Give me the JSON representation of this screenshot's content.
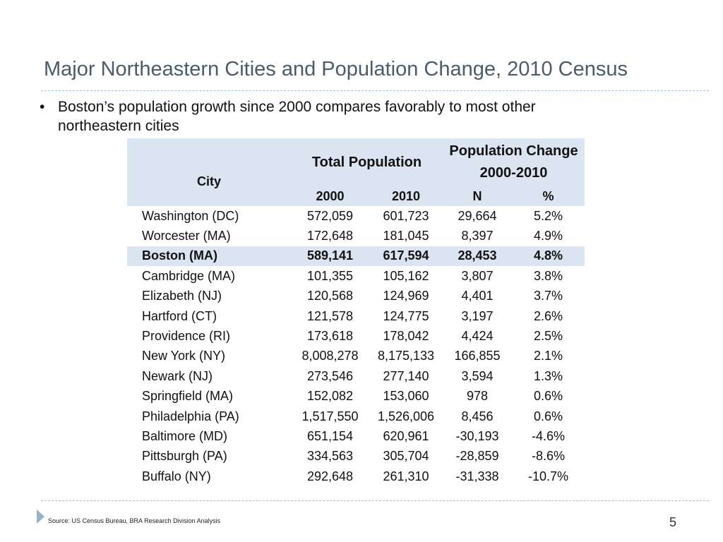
{
  "slide": {
    "title": "Major Northeastern Cities and Population Change, 2010 Census",
    "bullet_marker": "•",
    "bullet_text": "Boston’s population growth since 2000 compares favorably to most other northeastern cities",
    "source": "Source: US Census Bureau, BRA Research Division Analysis",
    "page_number": "5"
  },
  "table": {
    "headers": {
      "city": "City",
      "total_population": "Total Population",
      "population_change_line1": "Population Change",
      "population_change_line2": "2000-2010",
      "year_2000": "2000",
      "year_2010": "2010",
      "n": "N",
      "pct": "%"
    },
    "rows": [
      {
        "city": "Washington (DC)",
        "pop2000": "572,059",
        "pop2010": "601,723",
        "n": "29,664",
        "pct": "5.2%"
      },
      {
        "city": "Worcester (MA)",
        "pop2000": "172,648",
        "pop2010": "181,045",
        "n": "8,397",
        "pct": "4.9%"
      },
      {
        "city": "Boston (MA)",
        "pop2000": "589,141",
        "pop2010": "617,594",
        "n": "28,453",
        "pct": "4.8%"
      },
      {
        "city": "Cambridge (MA)",
        "pop2000": "101,355",
        "pop2010": "105,162",
        "n": "3,807",
        "pct": "3.8%"
      },
      {
        "city": "Elizabeth (NJ)",
        "pop2000": "120,568",
        "pop2010": "124,969",
        "n": "4,401",
        "pct": "3.7%"
      },
      {
        "city": "Hartford (CT)",
        "pop2000": "121,578",
        "pop2010": "124,775",
        "n": "3,197",
        "pct": "2.6%"
      },
      {
        "city": "Providence (RI)",
        "pop2000": "173,618",
        "pop2010": "178,042",
        "n": "4,424",
        "pct": "2.5%"
      },
      {
        "city": "New York (NY)",
        "pop2000": "8,008,278",
        "pop2010": "8,175,133",
        "n": "166,855",
        "pct": "2.1%"
      },
      {
        "city": "Newark (NJ)",
        "pop2000": "273,546",
        "pop2010": "277,140",
        "n": "3,594",
        "pct": "1.3%"
      },
      {
        "city": "Springfield (MA)",
        "pop2000": "152,082",
        "pop2010": "153,060",
        "n": "978",
        "pct": "0.6%"
      },
      {
        "city": "Philadelphia (PA)",
        "pop2000": "1,517,550",
        "pop2010": "1,526,006",
        "n": "8,456",
        "pct": "0.6%"
      },
      {
        "city": "Baltimore (MD)",
        "pop2000": "651,154",
        "pop2010": "620,961",
        "n": "-30,193",
        "pct": "-4.6%"
      },
      {
        "city": "Pittsburgh (PA)",
        "pop2000": "334,563",
        "pop2010": "305,704",
        "n": "-28,859",
        "pct": "-8.6%"
      },
      {
        "city": "Buffalo (NY)",
        "pop2000": "292,648",
        "pop2010": "261,310",
        "n": "-31,338",
        "pct": "-10.7%"
      }
    ],
    "highlight_row": 2
  },
  "colors": {
    "title": "#4a5b6c",
    "header_fill": "#dbe5f1",
    "highlight_fill": "#dbe5f1",
    "divider": "#a9bcd0",
    "footer_marker": "#9ab0c8"
  }
}
